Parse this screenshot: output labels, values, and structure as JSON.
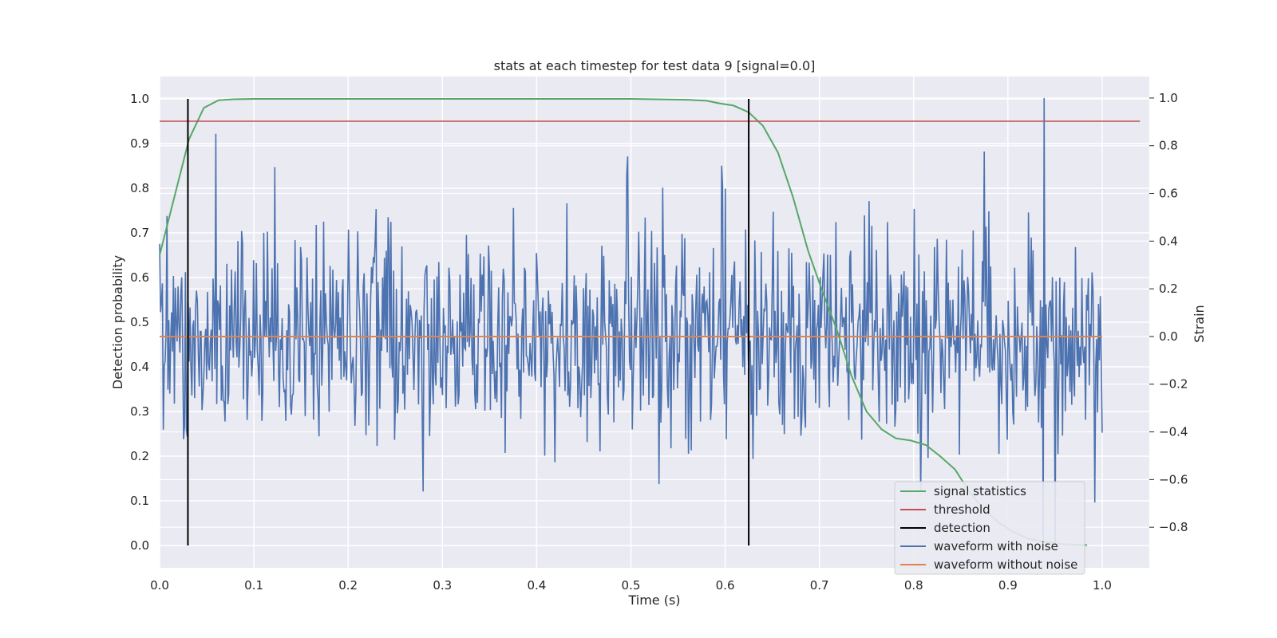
{
  "chart_data": {
    "type": "line",
    "title": "stats at each timestep for test data 9 [signal=0.0]",
    "xlabel": "Time (s)",
    "ylabel": "Detection probability",
    "ylabel_right": "Strain",
    "xlim": [
      0.0,
      1.05
    ],
    "ylim": [
      -0.05,
      1.05
    ],
    "ylim_right": [
      -0.97,
      1.09
    ],
    "xticks": [
      "0.0",
      "0.1",
      "0.2",
      "0.3",
      "0.4",
      "0.5",
      "0.6",
      "0.7",
      "0.8",
      "0.9",
      "1.0"
    ],
    "yticks": [
      "0.0",
      "0.1",
      "0.2",
      "0.3",
      "0.4",
      "0.5",
      "0.6",
      "0.7",
      "0.8",
      "0.9",
      "1.0"
    ],
    "yticks_right": [
      "−0.8",
      "−0.6",
      "−0.4",
      "−0.2",
      "0.0",
      "0.2",
      "0.4",
      "0.6",
      "0.8",
      "1.0"
    ],
    "grid": true,
    "legend_position": "lower-right",
    "colors": {
      "signal": "#55a868",
      "threshold": "#c44e52",
      "detection": "#000000",
      "noisy": "#4c72b0",
      "clean": "#dd8452",
      "background": "#eaeaf2",
      "grid": "#ffffff"
    },
    "series": [
      {
        "name": "signal statistics",
        "axis": "left",
        "x": [
          0.0,
          0.0156,
          0.03125,
          0.0469,
          0.0625,
          0.078,
          0.1,
          0.2,
          0.3,
          0.4,
          0.5,
          0.56,
          0.58,
          0.594,
          0.609,
          0.625,
          0.64,
          0.656,
          0.672,
          0.688,
          0.703,
          0.719,
          0.734,
          0.75,
          0.766,
          0.781,
          0.797,
          0.813,
          0.828,
          0.844,
          0.859,
          0.875,
          0.891,
          0.906,
          0.922,
          0.938,
          0.953,
          0.969,
          0.984
        ],
        "y": [
          0.65,
          0.78,
          0.91,
          0.98,
          0.997,
          0.999,
          1.0,
          1.0,
          1.0,
          1.0,
          1.0,
          0.998,
          0.996,
          0.99,
          0.985,
          0.97,
          0.94,
          0.88,
          0.78,
          0.66,
          0.57,
          0.48,
          0.38,
          0.3,
          0.26,
          0.24,
          0.235,
          0.225,
          0.2,
          0.17,
          0.12,
          0.08,
          0.05,
          0.03,
          0.015,
          0.008,
          0.004,
          0.002,
          0.001
        ]
      },
      {
        "name": "threshold",
        "axis": "left",
        "x": [
          0.0,
          1.04
        ],
        "y": [
          0.95,
          0.95
        ]
      },
      {
        "name": "detection",
        "axis": "left",
        "type": "vlines",
        "x": [
          0.03,
          0.625
        ],
        "y": [
          0.0,
          1.0
        ]
      },
      {
        "name": "waveform with noise",
        "axis": "right",
        "x_start": 0.0,
        "x_end": 1.0,
        "y_peaks": [
          0.32,
          -0.65,
          1.0,
          -0.88,
          0.85,
          -0.85,
          0.35,
          0.25,
          -0.3,
          -0.2,
          0.15,
          0.62
        ],
        "y_peaks_x": [
          0.1,
          0.28,
          0.938,
          0.95,
          0.06,
          0.937,
          0.4,
          0.5,
          0.7,
          0.8,
          0.9,
          0.6
        ]
      },
      {
        "name": "waveform without noise",
        "axis": "right",
        "x": [
          0.0,
          1.0
        ],
        "y": [
          0.0,
          0.0
        ]
      }
    ]
  }
}
